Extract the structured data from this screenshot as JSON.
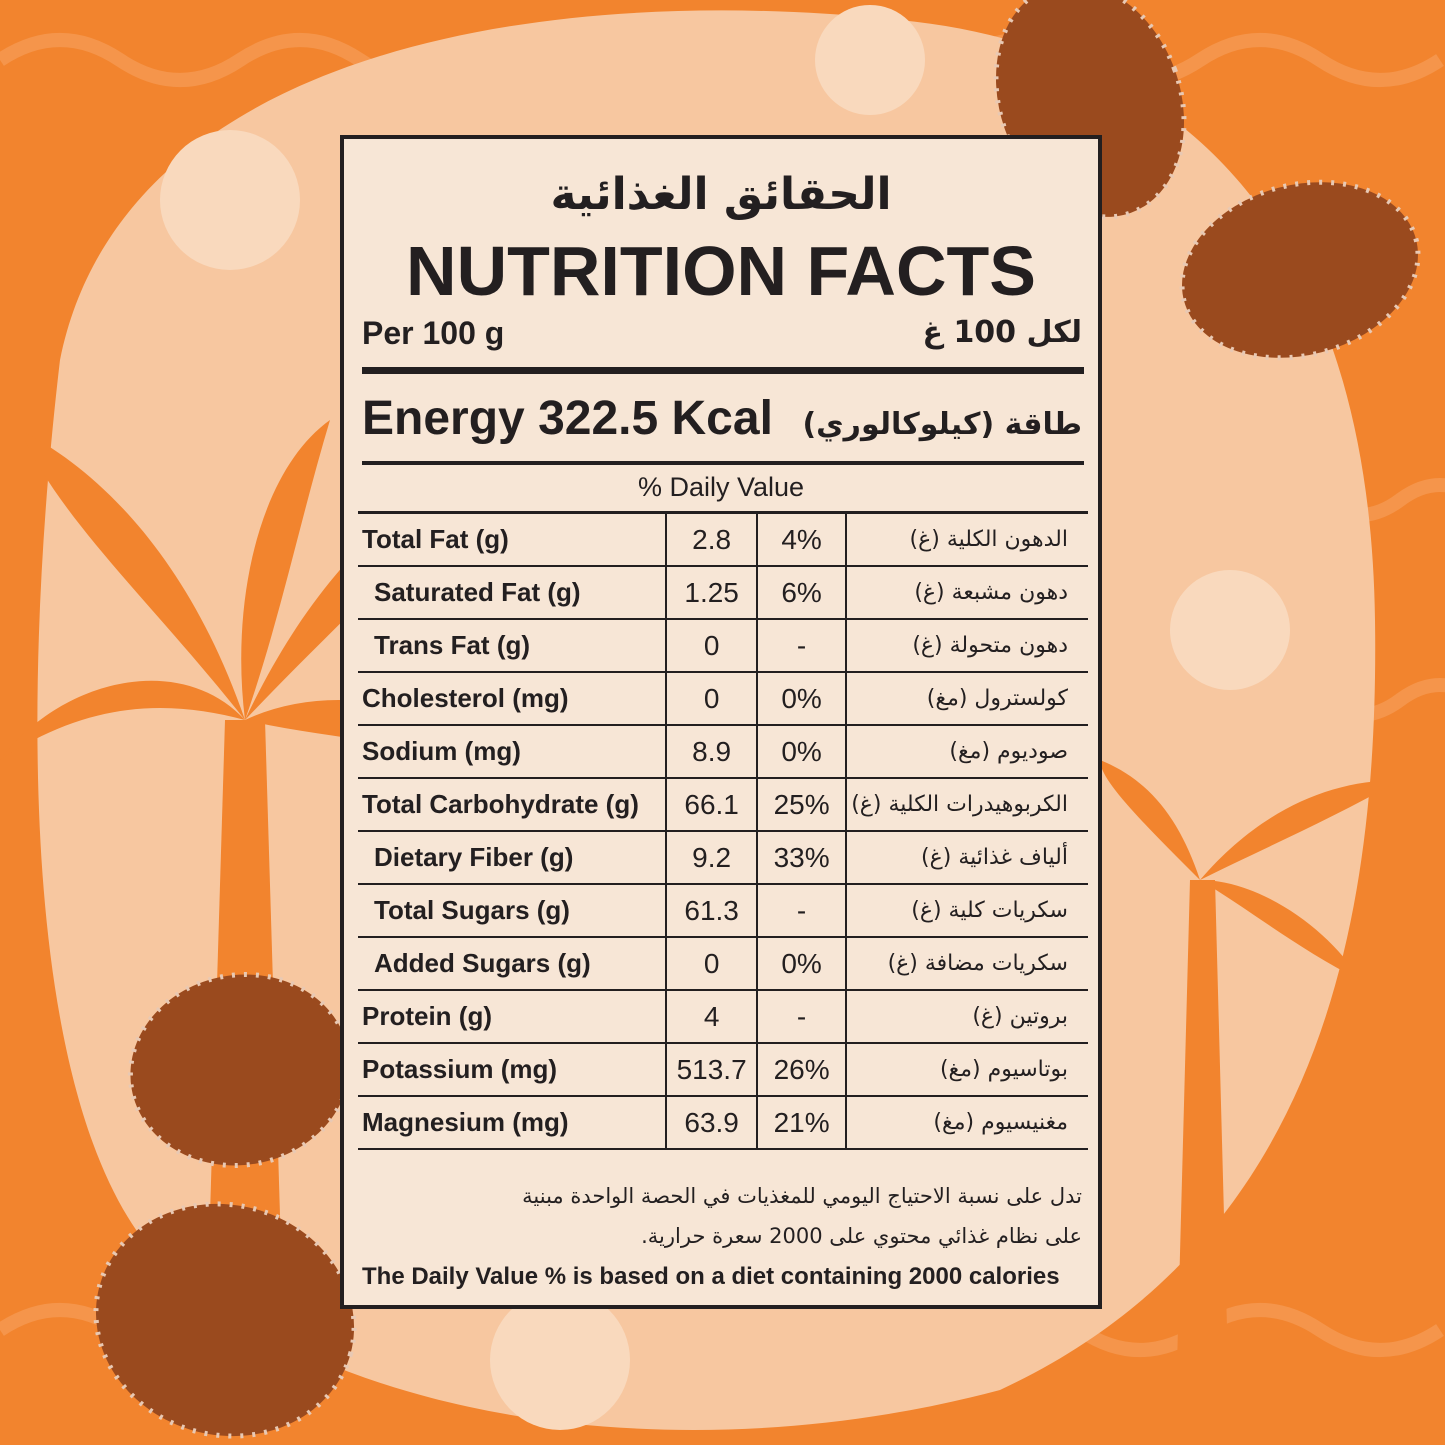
{
  "header": {
    "title_ar": "الحقائق الغذائية",
    "title_en": "NUTRITION FACTS",
    "serving_en": "Per 100 g",
    "serving_ar": "لكل 100 غ"
  },
  "energy": {
    "label_en": "Energy 322.5 Kcal",
    "label_ar": "طاقة (كيلوكالوري)"
  },
  "table": {
    "header": "% Daily Value",
    "rows": [
      [
        "Total Fat (g)",
        "2.8",
        "4%",
        "الدهون الكلية (غ)"
      ],
      [
        "Saturated Fat (g)",
        "1.25",
        "6%",
        "دهون مشبعة (غ)"
      ],
      [
        "Trans Fat (g)",
        "0",
        "-",
        "دهون متحولة (غ)"
      ],
      [
        "Cholesterol (mg)",
        "0",
        "0%",
        "كولسترول (مغ)"
      ],
      [
        "Sodium (mg)",
        "8.9",
        "0%",
        "صوديوم (مغ)"
      ],
      [
        "Total Carbohydrate (g)",
        "66.1",
        "25%",
        "الكربوهيدرات الكلية (غ)"
      ],
      [
        "Dietary Fiber (g)",
        "9.2",
        "33%",
        "ألياف غذائية (غ)"
      ],
      [
        "Total Sugars (g)",
        "61.3",
        "-",
        "سكريات كلية (غ)"
      ],
      [
        "Added Sugars (g)",
        "0",
        "0%",
        "سكريات مضافة (غ)"
      ],
      [
        "Protein (g)",
        "4",
        "-",
        "بروتين (غ)"
      ],
      [
        "Potassium (mg)",
        "513.7",
        "26%",
        "بوتاسيوم (مغ)"
      ],
      [
        "Magnesium (mg)",
        "63.9",
        "21%",
        "مغنيسيوم (مغ)"
      ]
    ]
  },
  "footnote": {
    "ar_1": "تدل على نسبة الاحتياج اليومي للمغذيات في الحصة الواحدة مبنية",
    "ar_2": "على نظام غذائي محتوي على 2000 سعرة حرارية.",
    "en": "The Daily Value % is based on a diet containing 2000 calories"
  }
}
